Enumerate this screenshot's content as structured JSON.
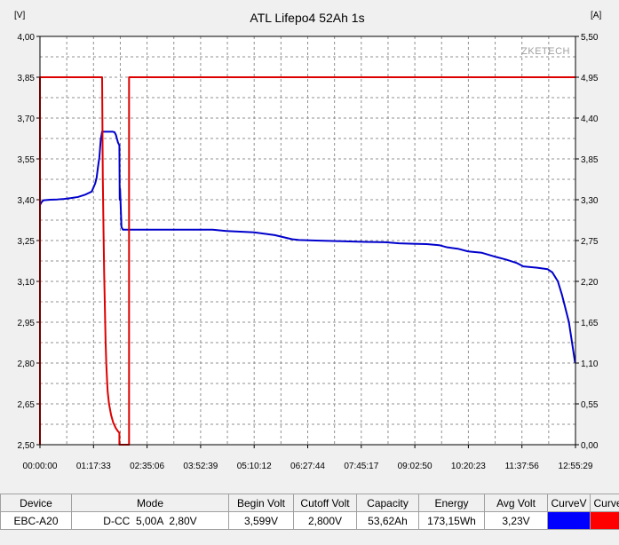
{
  "chart_data": {
    "type": "line",
    "title": "ATL Lifepo4 52Ah 1s",
    "watermark": "ZKETECH",
    "y_left_unit": "[V]",
    "y_right_unit": "[A]",
    "ylim_left": [
      2.5,
      4.0
    ],
    "ylim_right": [
      0.0,
      5.5
    ],
    "y_left_ticks": [
      "4,00",
      "3,85",
      "3,70",
      "3,55",
      "3,40",
      "3,25",
      "3,10",
      "2,95",
      "2,80",
      "2,65",
      "2,50"
    ],
    "y_right_ticks": [
      "5,50",
      "4,95",
      "4,40",
      "3,85",
      "3,30",
      "2,75",
      "2,20",
      "1,65",
      "1,10",
      "0,55",
      "0,00"
    ],
    "x_ticks": [
      "00:00:00",
      "01:17:33",
      "02:35:06",
      "03:52:39",
      "05:10:12",
      "06:27:44",
      "07:45:17",
      "09:02:50",
      "10:20:23",
      "11:37:56",
      "12:55:29"
    ],
    "xlim_minutes": [
      0,
      775.5
    ],
    "grid": true,
    "background": "#ffffff",
    "series": [
      {
        "name": "CurveV",
        "axis": "left",
        "color": "#0000cc",
        "points": [
          [
            0,
            3.38
          ],
          [
            2,
            3.39
          ],
          [
            5,
            3.398
          ],
          [
            15,
            3.4
          ],
          [
            25,
            3.401
          ],
          [
            35,
            3.403
          ],
          [
            45,
            3.406
          ],
          [
            55,
            3.41
          ],
          [
            65,
            3.418
          ],
          [
            75,
            3.43
          ],
          [
            80,
            3.46
          ],
          [
            82,
            3.48
          ],
          [
            84,
            3.52
          ],
          [
            86,
            3.555
          ],
          [
            88,
            3.62
          ],
          [
            90,
            3.65
          ],
          [
            95,
            3.65
          ],
          [
            100,
            3.65
          ],
          [
            105,
            3.65
          ],
          [
            108,
            3.648
          ],
          [
            110,
            3.638
          ],
          [
            113,
            3.61
          ],
          [
            115,
            3.6
          ],
          [
            115.5,
            3.4
          ],
          [
            116,
            3.44
          ],
          [
            118,
            3.3
          ],
          [
            120,
            3.29
          ],
          [
            150,
            3.29
          ],
          [
            200,
            3.29
          ],
          [
            250,
            3.29
          ],
          [
            270,
            3.285
          ],
          [
            310,
            3.28
          ],
          [
            340,
            3.27
          ],
          [
            365,
            3.255
          ],
          [
            375,
            3.252
          ],
          [
            400,
            3.25
          ],
          [
            430,
            3.248
          ],
          [
            470,
            3.245
          ],
          [
            500,
            3.244
          ],
          [
            520,
            3.24
          ],
          [
            540,
            3.238
          ],
          [
            560,
            3.237
          ],
          [
            578,
            3.233
          ],
          [
            590,
            3.225
          ],
          [
            605,
            3.22
          ],
          [
            620,
            3.21
          ],
          [
            640,
            3.205
          ],
          [
            660,
            3.19
          ],
          [
            675,
            3.18
          ],
          [
            690,
            3.168
          ],
          [
            700,
            3.155
          ],
          [
            720,
            3.15
          ],
          [
            735,
            3.145
          ],
          [
            742,
            3.133
          ],
          [
            750,
            3.1
          ],
          [
            756,
            3.05
          ],
          [
            761,
            3.0
          ],
          [
            766,
            2.95
          ],
          [
            769,
            2.9
          ],
          [
            772,
            2.85
          ],
          [
            775,
            2.8
          ]
        ]
      },
      {
        "name": "CurveA",
        "axis": "right",
        "color": "#dd0000",
        "points": [
          [
            0,
            0
          ],
          [
            0,
            4.95
          ],
          [
            90,
            4.95
          ],
          [
            91,
            3.6
          ],
          [
            92,
            2.9
          ],
          [
            93,
            2.3
          ],
          [
            94,
            1.85
          ],
          [
            95,
            1.4
          ],
          [
            96,
            1.1
          ],
          [
            97,
            0.9
          ],
          [
            98,
            0.72
          ],
          [
            100,
            0.55
          ],
          [
            103,
            0.4
          ],
          [
            106,
            0.3
          ],
          [
            110,
            0.22
          ],
          [
            113,
            0.18
          ],
          [
            115,
            0.16
          ],
          [
            115,
            0.0
          ],
          [
            128,
            0.0
          ],
          [
            129,
            0.0
          ],
          [
            129,
            4.95
          ],
          [
            775.5,
            4.95
          ]
        ]
      }
    ]
  },
  "results_table": {
    "headers": [
      "Device",
      "Mode",
      "Begin Volt",
      "Cutoff Volt",
      "Capacity",
      "Energy",
      "Avg Volt",
      "CurveV",
      "CurveA"
    ],
    "row": [
      "EBC-A20",
      "D-CC  5,00A  2,80V",
      "3,599V",
      "2,800V",
      "53,62Ah",
      "173,15Wh",
      "3,23V",
      "",
      ""
    ],
    "curve_colors": [
      "#0000ff",
      "#ff0000"
    ]
  }
}
